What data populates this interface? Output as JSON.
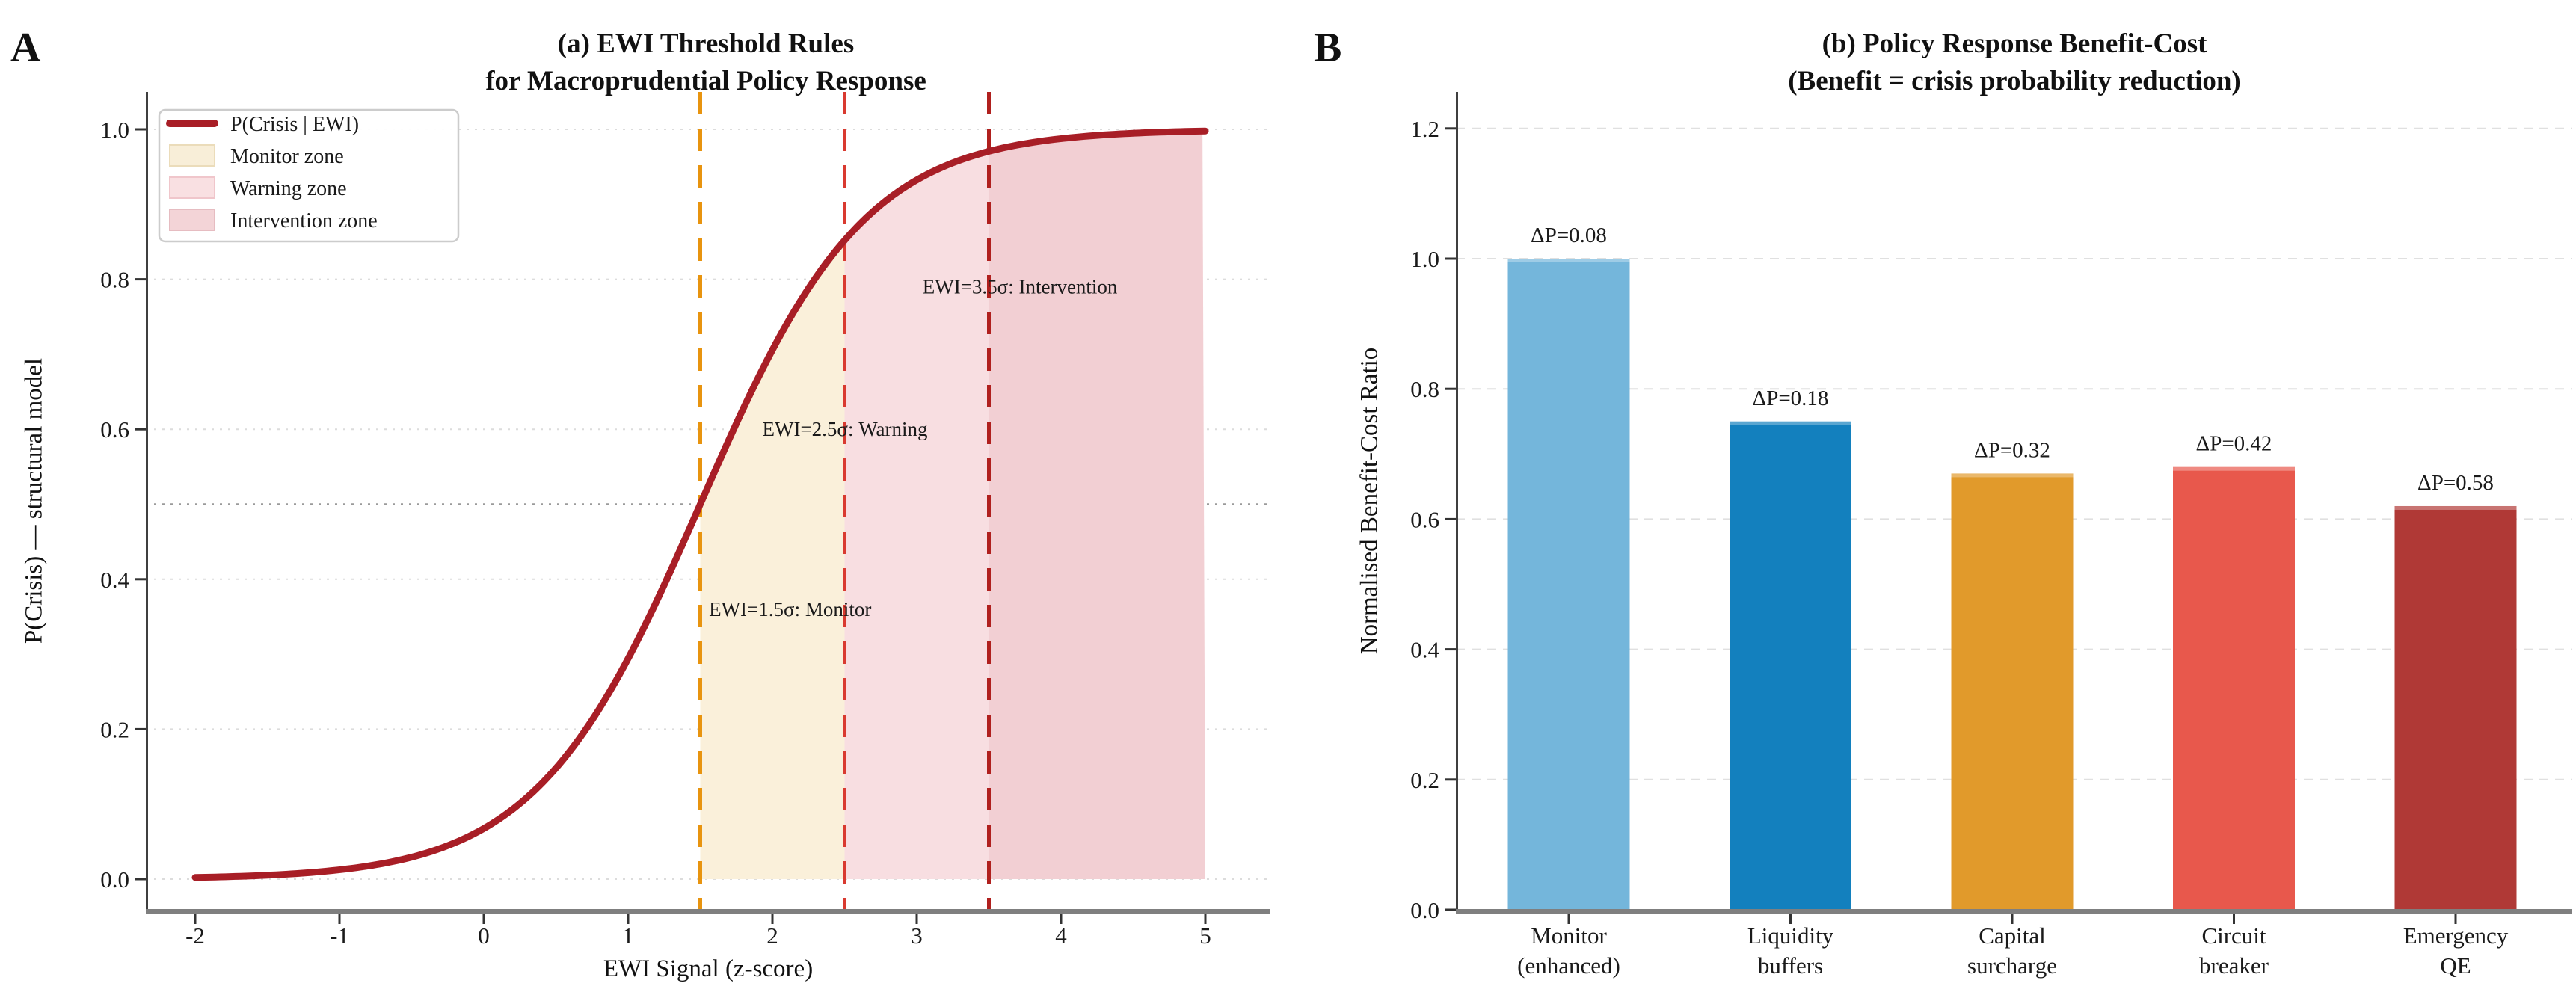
{
  "panel_letters": [
    "A",
    "B"
  ],
  "chart_data": [
    {
      "type": "line",
      "panel": "A",
      "title_lines": [
        "(a) EWI Threshold Rules",
        "for Macroprudential Policy Response"
      ],
      "xlabel": "EWI Signal (z-score)",
      "ylabel": "P(Crisis) — structural model",
      "xlim": [
        -2.33,
        5.45
      ],
      "ylim": [
        -0.04,
        1.05
      ],
      "xticks": [
        -2,
        -1,
        0,
        1,
        2,
        3,
        4,
        5
      ],
      "xtick_labels": [
        "-2",
        "-1",
        "0",
        "1",
        "2",
        "3",
        "4",
        "5"
      ],
      "yticks": [
        0,
        0.2,
        0.4,
        0.6,
        0.8,
        1.0
      ],
      "ytick_labels": [
        "0.0",
        "0.2",
        "0.4",
        "0.6",
        "0.8",
        "1.0"
      ],
      "grid": {
        "horizontal_dotted_at": [
          0,
          0.2,
          0.4,
          0.6,
          0.8,
          1.0
        ],
        "reference_dotted_y": 0.5
      },
      "series": [
        {
          "name": "P(Crisis | EWI)",
          "model": "logistic",
          "formula": "P = 1 / (1 + exp(-1.75 * (x - 1.5)))",
          "k": 1.75,
          "x0": 1.5,
          "x_range": [
            -2,
            5
          ],
          "color": "#A81E26",
          "points": [
            [
              -2,
              0.002
            ],
            [
              -1.5,
              0.005
            ],
            [
              -1,
              0.012
            ],
            [
              -0.5,
              0.029
            ],
            [
              0,
              0.068
            ],
            [
              0.5,
              0.148
            ],
            [
              1,
              0.294
            ],
            [
              1.5,
              0.5
            ],
            [
              2,
              0.706
            ],
            [
              2.5,
              0.852
            ],
            [
              3,
              0.932
            ],
            [
              3.5,
              0.971
            ],
            [
              4,
              0.988
            ],
            [
              4.5,
              0.995
            ],
            [
              5,
              0.998
            ]
          ]
        }
      ],
      "thresholds": [
        {
          "x": 1.5,
          "annotation": "EWI=1.5σ: Monitor",
          "line_color": "#E8940F",
          "text_color": "#DF8E15",
          "zone": "Monitor zone",
          "zone_span": [
            1.5,
            2.5
          ],
          "zone_fill": "#FAF0DA",
          "ann_x": 1.56,
          "ann_y": 0.36
        },
        {
          "x": 2.5,
          "annotation": "EWI=2.5σ: Warning",
          "line_color": "#D93A30",
          "text_color": "#E04B3E",
          "zone": "Warning zone",
          "zone_span": [
            2.5,
            3.5
          ],
          "zone_fill": "#F8DEE1",
          "ann_x": 1.93,
          "ann_y": 0.6
        },
        {
          "x": 3.5,
          "annotation": "EWI=3.5σ: Intervention",
          "line_color": "#B0201E",
          "text_color": "#B52A24",
          "zone": "Intervention zone",
          "zone_span": [
            3.5,
            5
          ],
          "zone_fill": "#F2CFD3",
          "ann_x": 3.04,
          "ann_y": 0.79
        }
      ],
      "legend": {
        "position": "upper left",
        "entries": [
          {
            "label": "P(Crisis | EWI)",
            "swatch": "line",
            "color": "#A81E26",
            "border": "#A81E26"
          },
          {
            "label": "Monitor zone",
            "swatch": "patch",
            "color": "#F8EED8",
            "border": "#EBDCBA"
          },
          {
            "label": "Warning zone",
            "swatch": "patch",
            "color": "#F9E0E2",
            "border": "#F0C6CB"
          },
          {
            "label": "Intervention zone",
            "swatch": "patch",
            "color": "#F3D4D7",
            "border": "#E6BCC1"
          }
        ]
      }
    },
    {
      "type": "bar",
      "panel": "B",
      "title_lines": [
        "(b) Policy Response Benefit-Cost",
        "(Benefit = crisis probability reduction)"
      ],
      "xlabel": "",
      "ylabel": "Normalised Benefit-Cost Ratio",
      "categories": [
        [
          "Monitor",
          "(enhanced)"
        ],
        [
          "Liquidity",
          "buffers"
        ],
        [
          "Capital",
          "surcharge"
        ],
        [
          "Circuit",
          "breaker"
        ],
        [
          "Emergency",
          "QE"
        ]
      ],
      "values": [
        1.0,
        0.75,
        0.67,
        0.68,
        0.62
      ],
      "bar_labels": [
        "ΔP=0.08",
        "ΔP=0.18",
        "ΔP=0.32",
        "ΔP=0.42",
        "ΔP=0.58"
      ],
      "bar_colors": [
        "#74B6DB",
        "#1380BE",
        "#E19A2B",
        "#E8584C",
        "#B03936"
      ],
      "ylim": [
        0,
        1.25
      ],
      "yticks": [
        0,
        0.2,
        0.4,
        0.6,
        0.8,
        1.0,
        1.2
      ],
      "ytick_labels": [
        "0.0",
        "0.2",
        "0.4",
        "0.6",
        "0.8",
        "1.0",
        "1.2"
      ],
      "grid": {
        "horizontal_dashed_at": [
          0.2,
          0.4,
          0.6,
          0.8,
          1.0,
          1.2
        ],
        "legend": "none"
      }
    }
  ]
}
